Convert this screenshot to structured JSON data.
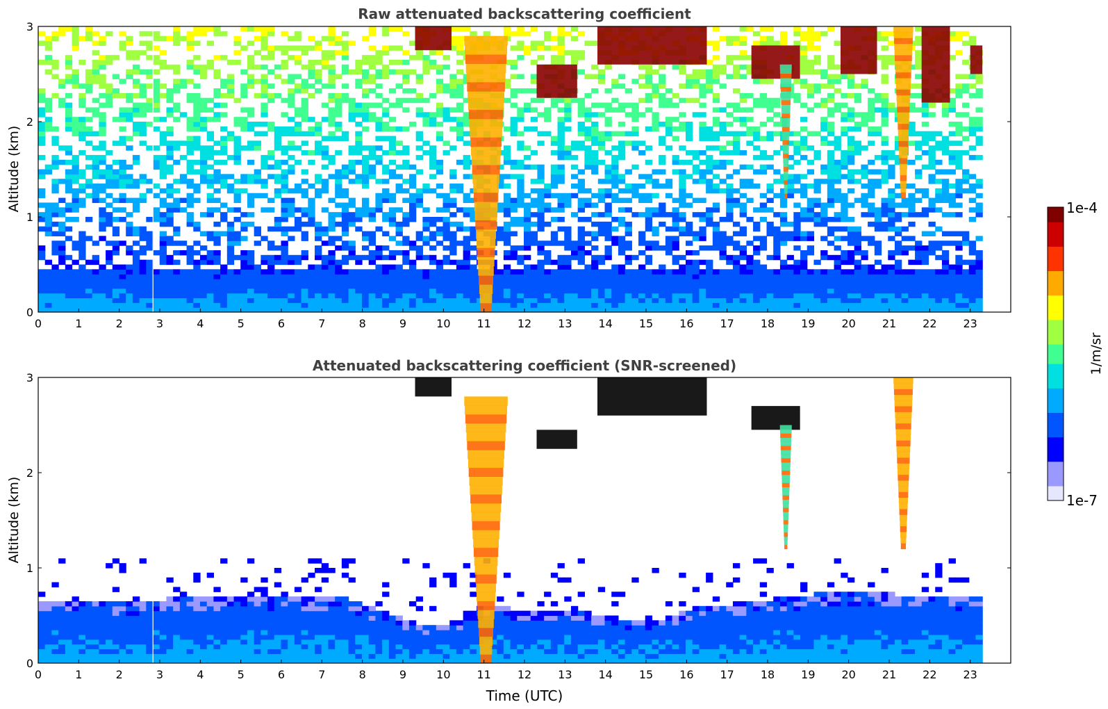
{
  "chart_data": [
    {
      "type": "heatmap",
      "title": "Raw attenuated backscattering coefficient",
      "ylabel": "Altitude (km)",
      "xlabel": "",
      "xlim": [
        0,
        24
      ],
      "ylim": [
        0,
        3
      ],
      "x_data_end": 23.3,
      "xticks": [
        "0",
        "1",
        "2",
        "3",
        "4",
        "5",
        "6",
        "7",
        "8",
        "9",
        "10",
        "11",
        "12",
        "13",
        "14",
        "15",
        "16",
        "17",
        "18",
        "19",
        "20",
        "21",
        "22",
        "23"
      ],
      "yticks": [
        "0",
        "1",
        "2",
        "3"
      ],
      "grid": false,
      "features": [
        {
          "kind": "boundary-layer",
          "time_range": [
            0,
            23.3
          ],
          "top_km": 0.45,
          "note": "dense blue aerosol layer near surface"
        },
        {
          "kind": "noise",
          "time_range": [
            0,
            23.3
          ],
          "altitude_range": [
            0.45,
            3.0
          ],
          "note": "cyan/green speckle increasing with altitude"
        },
        {
          "kind": "cloud-base",
          "time_range": [
            9.3,
            10.2
          ],
          "altitude_range": [
            2.75,
            3.0
          ],
          "level": "dark-red"
        },
        {
          "kind": "precipitation-streak",
          "time_range": [
            10.5,
            11.6
          ],
          "altitude_range": [
            0.0,
            2.9
          ],
          "level": "yellow-orange"
        },
        {
          "kind": "cloud",
          "time_range": [
            12.3,
            13.3
          ],
          "altitude_range": [
            2.25,
            2.6
          ],
          "level": "dark-red"
        },
        {
          "kind": "cloud-base",
          "time_range": [
            13.8,
            16.5
          ],
          "altitude_range": [
            2.6,
            3.0
          ],
          "level": "dark-red"
        },
        {
          "kind": "cloud",
          "time_range": [
            17.6,
            18.8
          ],
          "altitude_range": [
            2.45,
            2.8
          ],
          "level": "dark-red"
        },
        {
          "kind": "precipitation-streak",
          "time_range": [
            18.3,
            18.6
          ],
          "altitude_range": [
            1.2,
            2.6
          ],
          "level": "green-cyan"
        },
        {
          "kind": "cloud",
          "time_range": [
            19.8,
            20.7
          ],
          "altitude_range": [
            2.5,
            3.0
          ],
          "level": "dark-red"
        },
        {
          "kind": "precipitation-streak",
          "time_range": [
            21.1,
            21.6
          ],
          "altitude_range": [
            1.2,
            3.0
          ],
          "level": "yellow-orange"
        },
        {
          "kind": "cloud",
          "time_range": [
            21.8,
            22.5
          ],
          "altitude_range": [
            2.2,
            3.0
          ],
          "level": "dark-red"
        },
        {
          "kind": "cloud",
          "time_range": [
            23.0,
            23.3
          ],
          "altitude_range": [
            2.5,
            2.8
          ],
          "level": "dark-red"
        }
      ]
    },
    {
      "type": "heatmap",
      "title": "Attenuated backscattering coefficient (SNR-screened)",
      "ylabel": "Altitude (km)",
      "xlabel": "Time (UTC)",
      "xlim": [
        0,
        24
      ],
      "ylim": [
        0,
        3
      ],
      "x_data_end": 23.3,
      "xticks": [
        "0",
        "1",
        "2",
        "3",
        "4",
        "5",
        "6",
        "7",
        "8",
        "9",
        "10",
        "11",
        "12",
        "13",
        "14",
        "15",
        "16",
        "17",
        "18",
        "19",
        "20",
        "21",
        "22",
        "23"
      ],
      "yticks": [
        "0",
        "1",
        "2",
        "3"
      ],
      "grid": false,
      "boundary_layer_top_km": [
        [
          0,
          0.65
        ],
        [
          2,
          0.62
        ],
        [
          4,
          0.68
        ],
        [
          6,
          0.7
        ],
        [
          7.5,
          0.65
        ],
        [
          8.5,
          0.5
        ],
        [
          9.5,
          0.35
        ],
        [
          10.3,
          0.42
        ],
        [
          11,
          0.6
        ],
        [
          12,
          0.5
        ],
        [
          13,
          0.55
        ],
        [
          14,
          0.45
        ],
        [
          15,
          0.4
        ],
        [
          16,
          0.55
        ],
        [
          17,
          0.6
        ],
        [
          18,
          0.65
        ],
        [
          19,
          0.7
        ],
        [
          20,
          0.72
        ],
        [
          21,
          0.7
        ],
        [
          22,
          0.7
        ],
        [
          23.3,
          0.68
        ]
      ],
      "features": [
        {
          "kind": "cloud-base",
          "time_range": [
            9.3,
            10.2
          ],
          "altitude_range": [
            2.8,
            3.0
          ],
          "level": "black"
        },
        {
          "kind": "precipitation-streak",
          "time_range": [
            10.5,
            11.6
          ],
          "altitude_range": [
            0.0,
            2.8
          ],
          "level": "yellow-orange"
        },
        {
          "kind": "cloud",
          "time_range": [
            12.3,
            13.3
          ],
          "altitude_range": [
            2.25,
            2.45
          ],
          "level": "black"
        },
        {
          "kind": "cloud-base",
          "time_range": [
            13.8,
            16.5
          ],
          "altitude_range": [
            2.6,
            3.0
          ],
          "level": "black"
        },
        {
          "kind": "cloud",
          "time_range": [
            17.6,
            18.8
          ],
          "altitude_range": [
            2.45,
            2.7
          ],
          "level": "black"
        },
        {
          "kind": "precipitation-streak",
          "time_range": [
            18.3,
            18.6
          ],
          "altitude_range": [
            1.2,
            2.5
          ],
          "level": "green-cyan"
        },
        {
          "kind": "precipitation-streak",
          "time_range": [
            21.1,
            21.6
          ],
          "altitude_range": [
            1.2,
            3.0
          ],
          "level": "yellow-orange"
        }
      ]
    }
  ],
  "colorbar": {
    "max_label": "1e-4",
    "min_label": "1e-7",
    "unit_label": "1/m/sr",
    "colors": [
      "#e6e6ff",
      "#9999ff",
      "#0000ff",
      "#0055ff",
      "#00aaff",
      "#00e0e0",
      "#40ff90",
      "#a0ff40",
      "#ffff00",
      "#ffaa00",
      "#ff3300",
      "#cc0000",
      "#800000"
    ]
  }
}
